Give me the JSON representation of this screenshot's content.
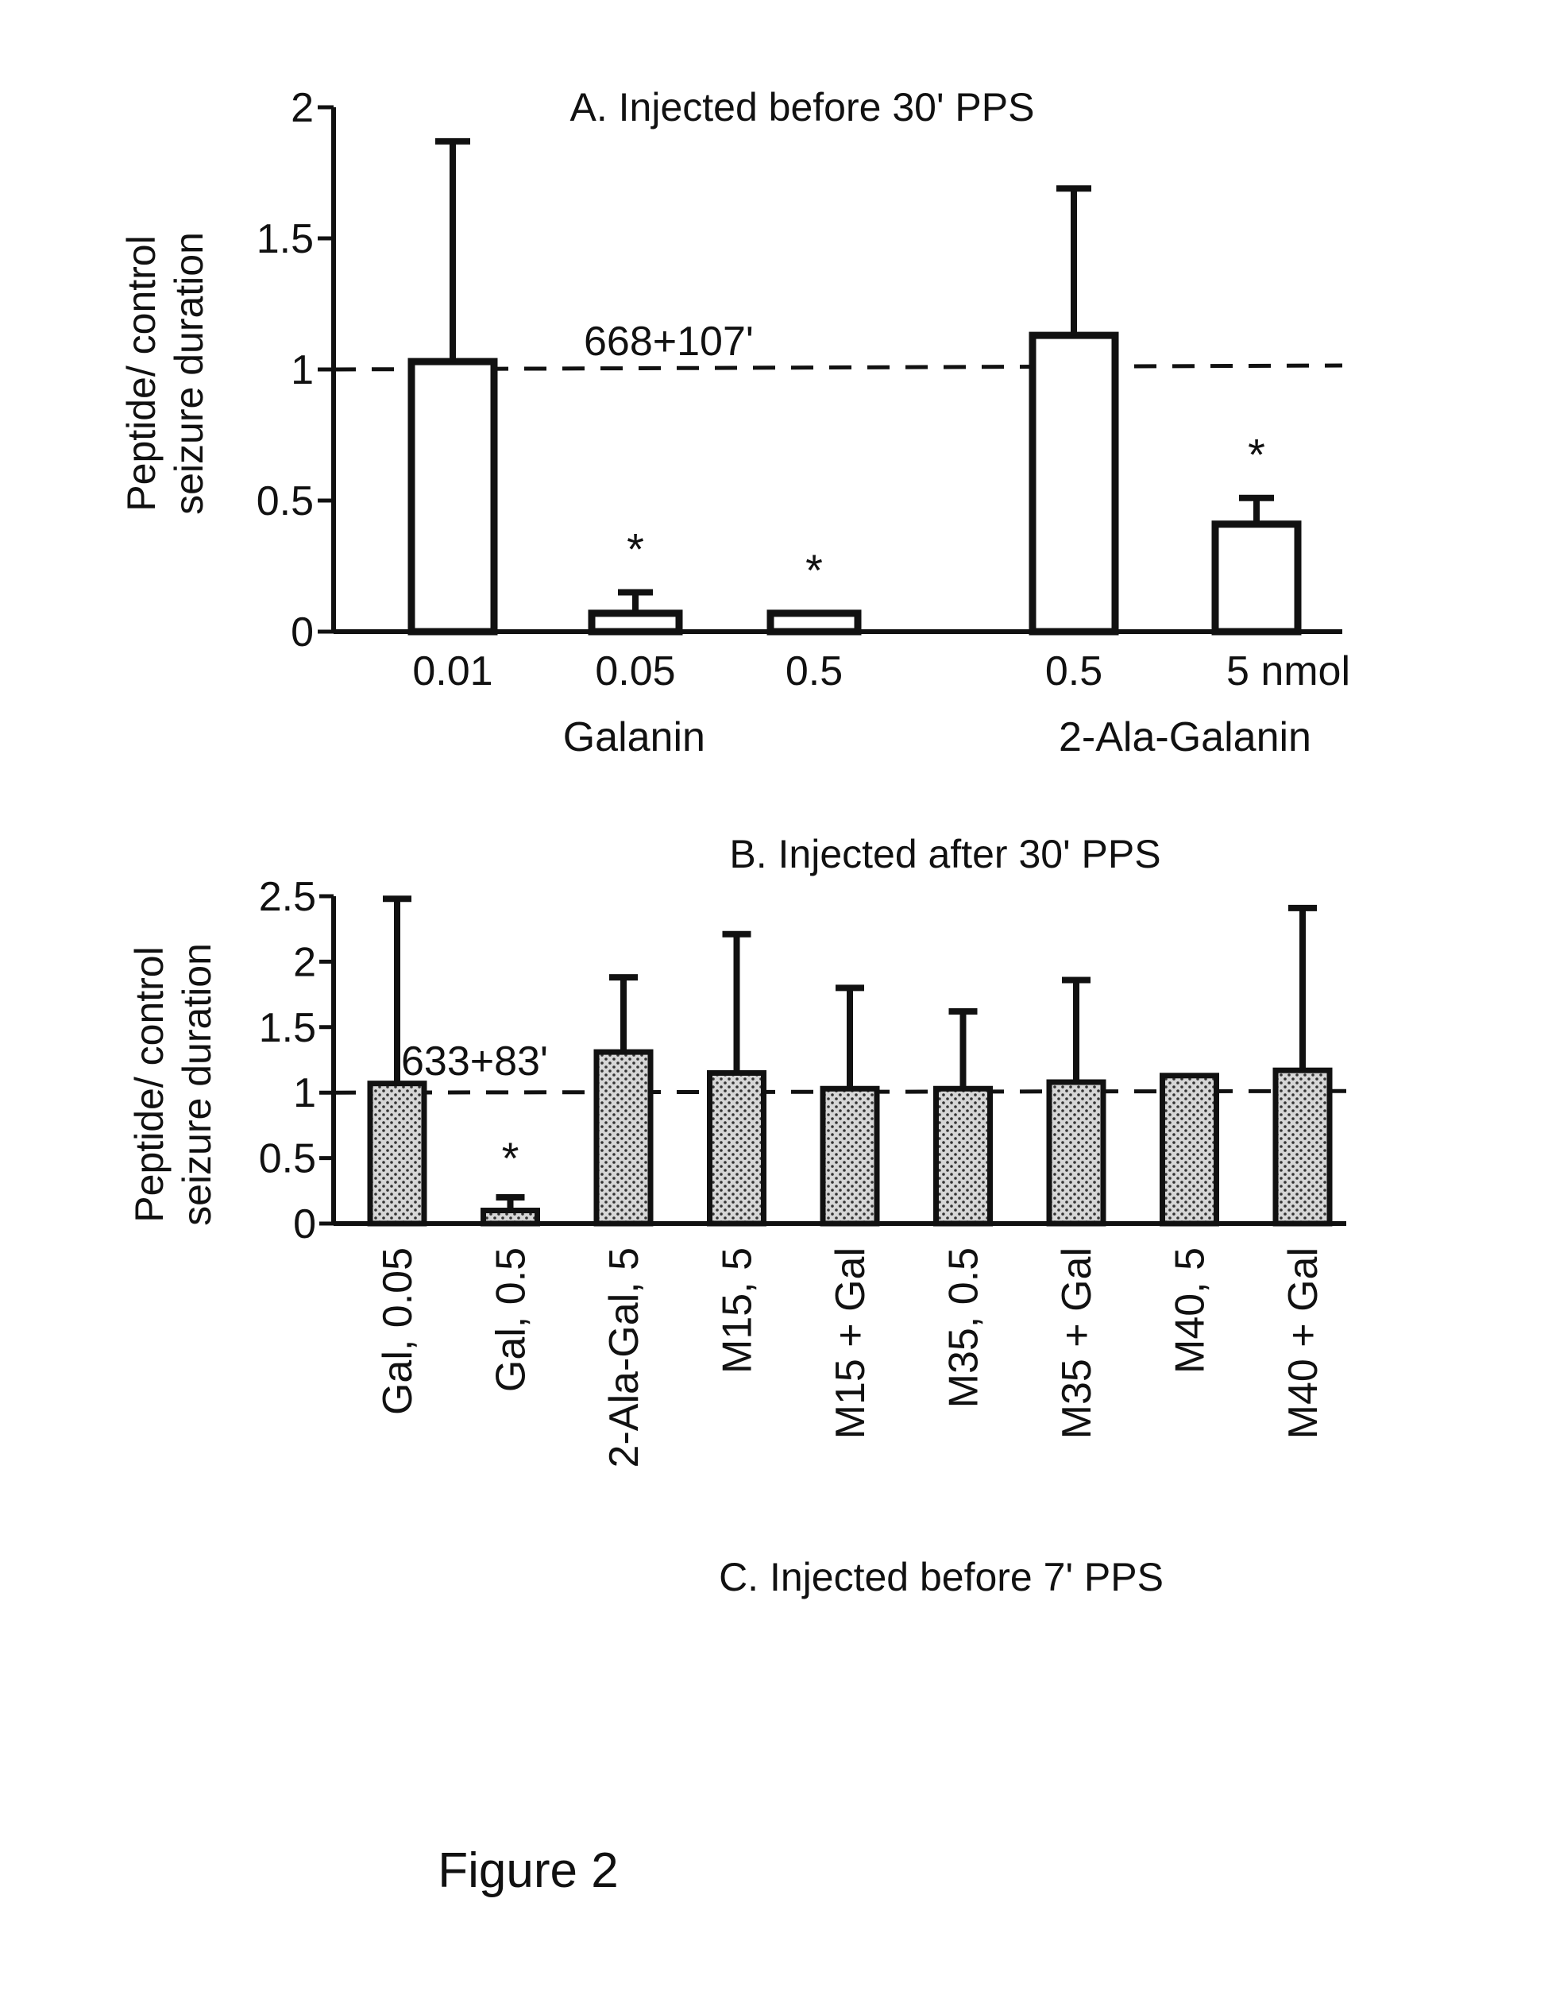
{
  "caption": "Figure 2",
  "panel_c_title": "C. Injected before 7' PPS",
  "chart_data": [
    {
      "type": "bar",
      "title": "A. Injected before 30' PPS",
      "ylabel_lines": [
        "Peptide/ control",
        "seizure duration"
      ],
      "ylim": [
        0,
        2
      ],
      "yticks": [
        "0",
        "0.5",
        "1",
        "1.5",
        "2"
      ],
      "categories": [
        "0.01",
        "0.05",
        "0.5",
        "0.5",
        "5 nmol"
      ],
      "group_labels": [
        "Galanin",
        "2-Ala-Galanin"
      ],
      "groups": [
        [
          0,
          1,
          2
        ],
        [
          3,
          4
        ]
      ],
      "values": [
        1.03,
        0.07,
        0.07,
        1.13,
        0.41
      ],
      "error_upper": [
        1.87,
        0.15,
        0.07,
        1.69,
        0.51
      ],
      "significant": [
        false,
        true,
        true,
        false,
        true
      ],
      "significance_marker": "*",
      "reference_line": {
        "value": 1.0,
        "label": "668+107'"
      },
      "grid": false
    },
    {
      "type": "bar",
      "title": "B. Injected after 30' PPS",
      "ylabel_lines": [
        "Peptide/ control",
        "seizure duration"
      ],
      "ylim": [
        0,
        2.5
      ],
      "yticks": [
        "0",
        "0.5",
        "1",
        "1.5",
        "2",
        "2.5"
      ],
      "categories": [
        "Gal, 0.05",
        "Gal, 0.5",
        "2-Ala-Gal, 5",
        "M15, 5",
        "M15 + Gal",
        "M35, 0.5",
        "M35 + Gal",
        "M40, 5",
        "M40 + Gal"
      ],
      "values": [
        1.07,
        0.1,
        1.31,
        1.15,
        1.03,
        1.03,
        1.08,
        1.13,
        1.17
      ],
      "error_upper": [
        2.48,
        0.2,
        1.88,
        2.21,
        1.8,
        1.62,
        1.86,
        1.13,
        2.41
      ],
      "significant": [
        false,
        true,
        false,
        false,
        false,
        false,
        false,
        false,
        false
      ],
      "significance_marker": "*",
      "reference_line": {
        "value": 1.0,
        "label": "633+83'"
      },
      "grid": false
    }
  ]
}
